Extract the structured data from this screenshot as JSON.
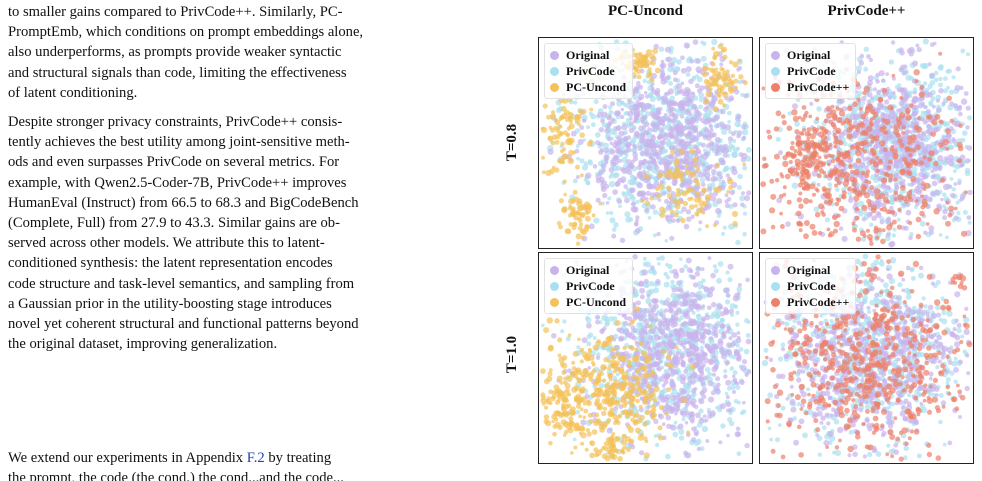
{
  "text": {
    "p1": {
      "l1": "to smaller gains compared to PrivCode++. Similarly, PC-",
      "l2": "PromptEmb, which conditions on prompt embeddings alone,",
      "l3": "also underperforms, as prompts provide weaker syntactic",
      "l4": "and structural signals than code, limiting the effectiveness",
      "l5": "of latent conditioning."
    },
    "p2": {
      "l1": "Despite stronger privacy constraints, PrivCode++ consis-",
      "l2": "tently achieves the best utility among joint-sensitive meth-",
      "l3": "ods and even surpasses PrivCode on several metrics.  For",
      "l4": "example, with Qwen2.5-Coder-7B, PrivCode++ improves",
      "l5": "HumanEval (Instruct) from 66.5 to 68.3 and BigCodeBench",
      "l6": "(Complete, Full) from 27.9 to 43.3. Similar gains are ob-",
      "l7": "served across other models.  We attribute this to latent-",
      "l8": "conditioned synthesis: the latent representation encodes",
      "l9": "code structure and task-level semantics, and sampling from",
      "l10": "a Gaussian prior in the utility-boosting stage introduces",
      "l11": "novel yet coherent structural and functional patterns beyond",
      "l12": "the original dataset, improving generalization."
    },
    "p3": {
      "pre": "We extend our experiments in Appendix ",
      "ref": "F.2",
      "post": " by treating",
      "l2": "the prompt, the code (the cond.) the cond...and the code..."
    }
  },
  "figure": {
    "col_titles": [
      "PC-Uncond",
      "PrivCode++"
    ],
    "row_labels": [
      "T=0.8",
      "T=1.0"
    ],
    "legend_left": [
      "Original",
      "PrivCode",
      "PC-Uncond"
    ],
    "legend_right": [
      "Original",
      "PrivCode",
      "PrivCode++"
    ],
    "colors": {
      "original": "#c9b3ec",
      "privcode": "#a9dff0",
      "pc_uncond": "#f3c25a",
      "privcode_pp": "#ec8068"
    }
  }
}
